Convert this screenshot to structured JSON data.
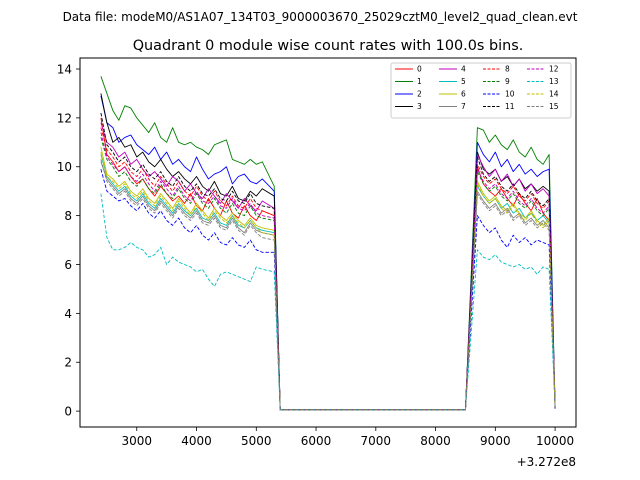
{
  "chart_data": {
    "type": "line",
    "suptitle": "Data file: modeM0/AS1A07_134T03_9000003670_25029cztM0_level2_quad_clean.evt",
    "title": "Quadrant 0 module wise count rates with 100.0s bins.",
    "xlabel": "",
    "ylabel": "",
    "x_offset_label": "+3.272e8",
    "xlim": [
      2050,
      10350
    ],
    "ylim": [
      -0.65,
      14.45
    ],
    "xticks": [
      3000,
      4000,
      5000,
      6000,
      7000,
      8000,
      9000,
      10000
    ],
    "yticks": [
      0,
      2,
      4,
      6,
      8,
      10,
      12,
      14
    ],
    "legend_position": "top-right",
    "seg1": {
      "x_start": 2400,
      "x_end": 5200,
      "step": 100
    },
    "seg2": {
      "x_start": 8700,
      "x_end": 9900,
      "step": 100
    },
    "series": [
      {
        "name": "0",
        "color": "#ff0000",
        "style": "solid",
        "first": 12.0,
        "seg1": [
          10.5,
          10.2,
          9.8,
          10.0,
          9.6,
          9.3,
          9.5,
          9.1,
          8.8,
          9.2,
          8.9,
          8.6,
          8.8,
          8.5,
          8.9,
          8.4,
          8.2,
          8.7,
          8.3,
          8.0,
          8.6,
          8.1,
          7.9,
          8.4,
          8.0,
          7.8,
          8.2
        ],
        "end1": 8.0,
        "seg2": [
          10.0,
          9.3,
          9.0,
          8.8,
          9.1,
          8.7,
          8.4,
          8.9,
          8.5,
          8.2,
          8.7,
          8.1,
          7.8
        ],
        "end2": 0.1
      },
      {
        "name": "1",
        "color": "#008000",
        "style": "solid",
        "first": 13.7,
        "seg1": [
          13.0,
          12.3,
          11.9,
          12.5,
          12.4,
          12.0,
          11.7,
          11.4,
          11.8,
          11.2,
          11.0,
          11.6,
          11.0,
          10.9,
          11.0,
          10.8,
          10.7,
          10.5,
          10.9,
          11.0,
          11.1,
          10.3,
          10.2,
          10.1,
          10.3,
          10.1,
          10.2
        ],
        "end1": 9.2,
        "seg2": [
          11.6,
          11.5,
          11.0,
          11.3,
          10.9,
          10.7,
          11.1,
          10.6,
          10.4,
          10.8,
          10.3,
          10.1,
          10.5
        ],
        "end2": 0.2
      },
      {
        "name": "2",
        "color": "#0000ff",
        "style": "solid",
        "first": 12.9,
        "seg1": [
          11.8,
          11.6,
          11.0,
          11.2,
          11.3,
          10.9,
          10.7,
          10.5,
          10.8,
          10.3,
          10.6,
          10.1,
          10.3,
          10.0,
          9.8,
          10.4,
          9.9,
          9.5,
          9.7,
          9.8,
          10.0,
          9.3,
          9.6,
          9.7,
          9.4,
          9.3,
          9.5
        ],
        "end1": 9.0,
        "seg2": [
          11.0,
          10.5,
          10.2,
          10.6,
          10.0,
          10.3,
          9.8,
          10.1,
          9.7,
          9.9,
          9.6,
          9.8,
          9.9
        ],
        "end2": 0.2
      },
      {
        "name": "3",
        "color": "#000000",
        "style": "solid",
        "first": 13.0,
        "seg1": [
          11.8,
          11.0,
          11.2,
          10.8,
          10.9,
          10.4,
          10.6,
          10.2,
          10.0,
          10.3,
          9.9,
          9.6,
          9.8,
          9.5,
          9.3,
          9.6,
          9.2,
          9.0,
          9.4,
          8.9,
          8.8,
          9.2,
          8.7,
          8.6,
          9.0,
          8.8,
          9.1
        ],
        "end1": 8.8,
        "seg2": [
          10.6,
          9.9,
          9.7,
          9.9,
          9.4,
          9.6,
          9.2,
          9.5,
          9.1,
          9.3,
          9.0,
          9.2,
          9.0
        ],
        "end2": 0.15
      },
      {
        "name": "4",
        "color": "#bf00bf",
        "style": "solid",
        "first": 11.8,
        "seg1": [
          11.0,
          10.8,
          10.4,
          10.6,
          10.1,
          10.3,
          9.9,
          9.6,
          9.8,
          9.5,
          9.2,
          9.6,
          9.4,
          9.0,
          9.3,
          8.9,
          8.7,
          9.1,
          8.8,
          8.5,
          8.9,
          8.6,
          8.3,
          8.7,
          8.4,
          8.2,
          8.6
        ],
        "end1": 8.3,
        "seg2": [
          10.5,
          10.0,
          9.6,
          9.9,
          9.4,
          9.7,
          9.2,
          9.5,
          9.0,
          9.3,
          8.9,
          9.1,
          8.8
        ],
        "end2": 0.2
      },
      {
        "name": "5",
        "color": "#00bfbf",
        "style": "solid",
        "first": 10.5,
        "seg1": [
          9.6,
          9.3,
          9.0,
          9.2,
          8.8,
          8.6,
          8.9,
          8.5,
          8.3,
          8.7,
          8.4,
          8.1,
          8.5,
          8.2,
          8.0,
          8.3,
          7.9,
          7.8,
          8.1,
          7.7,
          7.6,
          8.0,
          7.6,
          7.5,
          7.8,
          7.5,
          7.4
        ],
        "end1": 7.3,
        "seg2": [
          9.2,
          8.8,
          8.5,
          8.7,
          8.3,
          8.5,
          8.1,
          8.3,
          7.9,
          8.1,
          7.8,
          8.0,
          7.7
        ],
        "end2": 0.2
      },
      {
        "name": "6",
        "color": "#bfbf00",
        "style": "solid",
        "first": 10.8,
        "seg1": [
          9.7,
          9.5,
          9.2,
          9.4,
          9.0,
          8.8,
          9.1,
          8.7,
          8.5,
          8.9,
          8.6,
          8.3,
          8.7,
          8.4,
          8.1,
          8.5,
          8.2,
          7.9,
          8.3,
          8.0,
          7.8,
          8.1,
          7.8,
          7.6,
          7.9,
          7.6,
          7.5
        ],
        "end1": 7.4,
        "seg2": [
          9.4,
          8.9,
          8.6,
          8.8,
          8.4,
          8.2,
          8.5,
          8.1,
          7.9,
          8.2,
          7.8,
          7.6,
          7.9
        ],
        "end2": 0.2
      },
      {
        "name": "7",
        "color": "#808080",
        "style": "solid",
        "first": 10.2,
        "seg1": [
          9.5,
          9.2,
          8.9,
          9.1,
          8.7,
          8.5,
          8.8,
          8.4,
          8.2,
          8.6,
          8.3,
          8.0,
          8.4,
          8.1,
          7.9,
          8.2,
          7.8,
          7.7,
          8.0,
          7.6,
          7.5,
          7.9,
          7.5,
          7.3,
          7.7,
          7.4,
          7.3
        ],
        "end1": 7.2,
        "seg2": [
          9.0,
          8.6,
          8.3,
          8.5,
          8.1,
          8.3,
          7.9,
          8.1,
          7.7,
          7.9,
          7.6,
          7.8,
          7.5
        ],
        "end2": 0.2
      },
      {
        "name": "8",
        "color": "#ff0000",
        "style": "dashed",
        "first": 11.6,
        "seg1": [
          10.7,
          10.4,
          10.0,
          10.2,
          9.8,
          9.6,
          9.9,
          9.5,
          9.2,
          9.6,
          9.3,
          9.0,
          9.4,
          9.0,
          8.8,
          9.2,
          8.8,
          8.6,
          9.0,
          8.6,
          8.4,
          8.8,
          8.4,
          8.3,
          8.7,
          8.3,
          8.2
        ],
        "end1": 8.0,
        "seg2": [
          10.1,
          9.6,
          9.3,
          9.5,
          9.1,
          8.9,
          9.2,
          8.8,
          8.6,
          8.9,
          8.5,
          8.3,
          8.6
        ],
        "end2": 0.15
      },
      {
        "name": "9",
        "color": "#008000",
        "style": "dashed",
        "first": 11.2,
        "seg1": [
          10.3,
          10.0,
          9.6,
          9.8,
          9.4,
          9.2,
          9.5,
          9.1,
          8.9,
          9.3,
          8.9,
          8.7,
          9.1,
          8.7,
          8.5,
          8.9,
          8.5,
          8.3,
          8.7,
          8.3,
          8.1,
          8.5,
          8.1,
          8.0,
          8.4,
          8.0,
          7.9
        ],
        "end1": 7.8,
        "seg2": [
          9.8,
          9.3,
          9.0,
          9.2,
          8.8,
          8.6,
          8.9,
          8.5,
          8.3,
          8.6,
          8.2,
          8.0,
          8.3
        ],
        "end2": 0.15
      },
      {
        "name": "10",
        "color": "#0000ff",
        "style": "dashed",
        "first": 9.9,
        "seg1": [
          9.0,
          8.8,
          8.6,
          8.7,
          8.4,
          8.2,
          8.5,
          8.1,
          7.9,
          8.2,
          7.8,
          7.6,
          7.9,
          7.5,
          7.3,
          7.6,
          7.2,
          7.0,
          7.3,
          6.9,
          6.8,
          7.1,
          6.8,
          6.7,
          7.0,
          6.6,
          6.5
        ],
        "end1": 6.5,
        "seg2": [
          8.0,
          7.6,
          7.3,
          7.5,
          7.0,
          6.7,
          7.2,
          6.9,
          7.1,
          6.8,
          7.0,
          6.9,
          6.8
        ],
        "end2": 0.1
      },
      {
        "name": "11",
        "color": "#000000",
        "style": "dashed",
        "first": 12.2,
        "seg1": [
          10.9,
          10.6,
          10.2,
          10.4,
          10.0,
          9.8,
          10.1,
          9.7,
          9.5,
          9.8,
          9.4,
          9.2,
          9.6,
          9.2,
          9.0,
          9.3,
          8.9,
          8.8,
          9.1,
          8.7,
          8.6,
          9.0,
          8.6,
          8.5,
          8.9,
          8.5,
          8.4
        ],
        "end1": 8.3,
        "seg2": [
          10.4,
          9.7,
          9.4,
          9.6,
          9.2,
          9.0,
          9.3,
          8.9,
          8.7,
          9.0,
          8.6,
          8.4,
          8.7
        ],
        "end2": 0.15
      },
      {
        "name": "12",
        "color": "#bf00bf",
        "style": "dashed",
        "first": 11.4,
        "seg1": [
          10.4,
          10.1,
          9.8,
          10.0,
          9.6,
          9.4,
          9.7,
          9.3,
          9.0,
          9.4,
          9.1,
          8.8,
          9.2,
          8.8,
          8.6,
          9.0,
          8.6,
          8.5,
          8.8,
          8.4,
          8.3,
          8.7,
          8.3,
          8.2,
          8.5,
          8.1,
          8.0
        ],
        "end1": 7.9,
        "seg2": [
          9.9,
          9.4,
          9.1,
          9.3,
          8.9,
          8.7,
          9.0,
          8.6,
          8.4,
          8.7,
          8.3,
          8.1,
          8.4
        ],
        "end2": 0.15
      },
      {
        "name": "13",
        "color": "#00bfbf",
        "style": "dashed",
        "first": 8.9,
        "seg1": [
          7.1,
          6.6,
          6.6,
          6.7,
          6.9,
          6.7,
          6.6,
          6.3,
          6.4,
          6.7,
          6.0,
          6.3,
          6.1,
          6.0,
          5.9,
          5.7,
          5.8,
          5.4,
          5.1,
          5.6,
          5.7,
          5.6,
          5.5,
          5.4,
          5.3,
          5.9,
          5.8
        ],
        "end1": 5.7,
        "seg2": [
          6.6,
          6.3,
          6.2,
          6.4,
          6.1,
          6.0,
          5.9,
          6.0,
          5.8,
          5.9,
          5.6,
          5.9,
          5.8
        ],
        "end2": 0.2
      },
      {
        "name": "14",
        "color": "#bfbf00",
        "style": "dashed",
        "first": 10.6,
        "seg1": [
          9.6,
          9.4,
          9.1,
          9.3,
          8.9,
          8.7,
          9.0,
          8.6,
          8.4,
          8.8,
          8.5,
          8.2,
          8.6,
          8.3,
          8.0,
          8.4,
          8.1,
          7.8,
          8.2,
          7.9,
          7.7,
          8.0,
          7.7,
          7.5,
          7.8,
          7.5,
          7.3
        ],
        "end1": 7.2,
        "seg2": [
          9.3,
          8.8,
          8.5,
          8.7,
          8.3,
          8.1,
          8.4,
          8.0,
          7.8,
          8.1,
          7.7,
          7.5,
          7.8
        ],
        "end2": 0.2
      },
      {
        "name": "15",
        "color": "#808080",
        "style": "dashed",
        "first": 10.3,
        "seg1": [
          9.4,
          9.1,
          8.8,
          9.0,
          8.6,
          8.4,
          8.7,
          8.3,
          8.1,
          8.5,
          8.2,
          7.9,
          8.3,
          8.0,
          7.8,
          8.1,
          7.7,
          7.6,
          7.9,
          7.5,
          7.4,
          7.8,
          7.4,
          7.2,
          7.6,
          7.3,
          7.1
        ],
        "end1": 7.0,
        "seg2": [
          8.9,
          8.5,
          8.2,
          8.4,
          8.0,
          8.2,
          7.8,
          8.0,
          7.6,
          7.8,
          7.5,
          7.7,
          7.4
        ],
        "end2": 0.2
      }
    ]
  }
}
